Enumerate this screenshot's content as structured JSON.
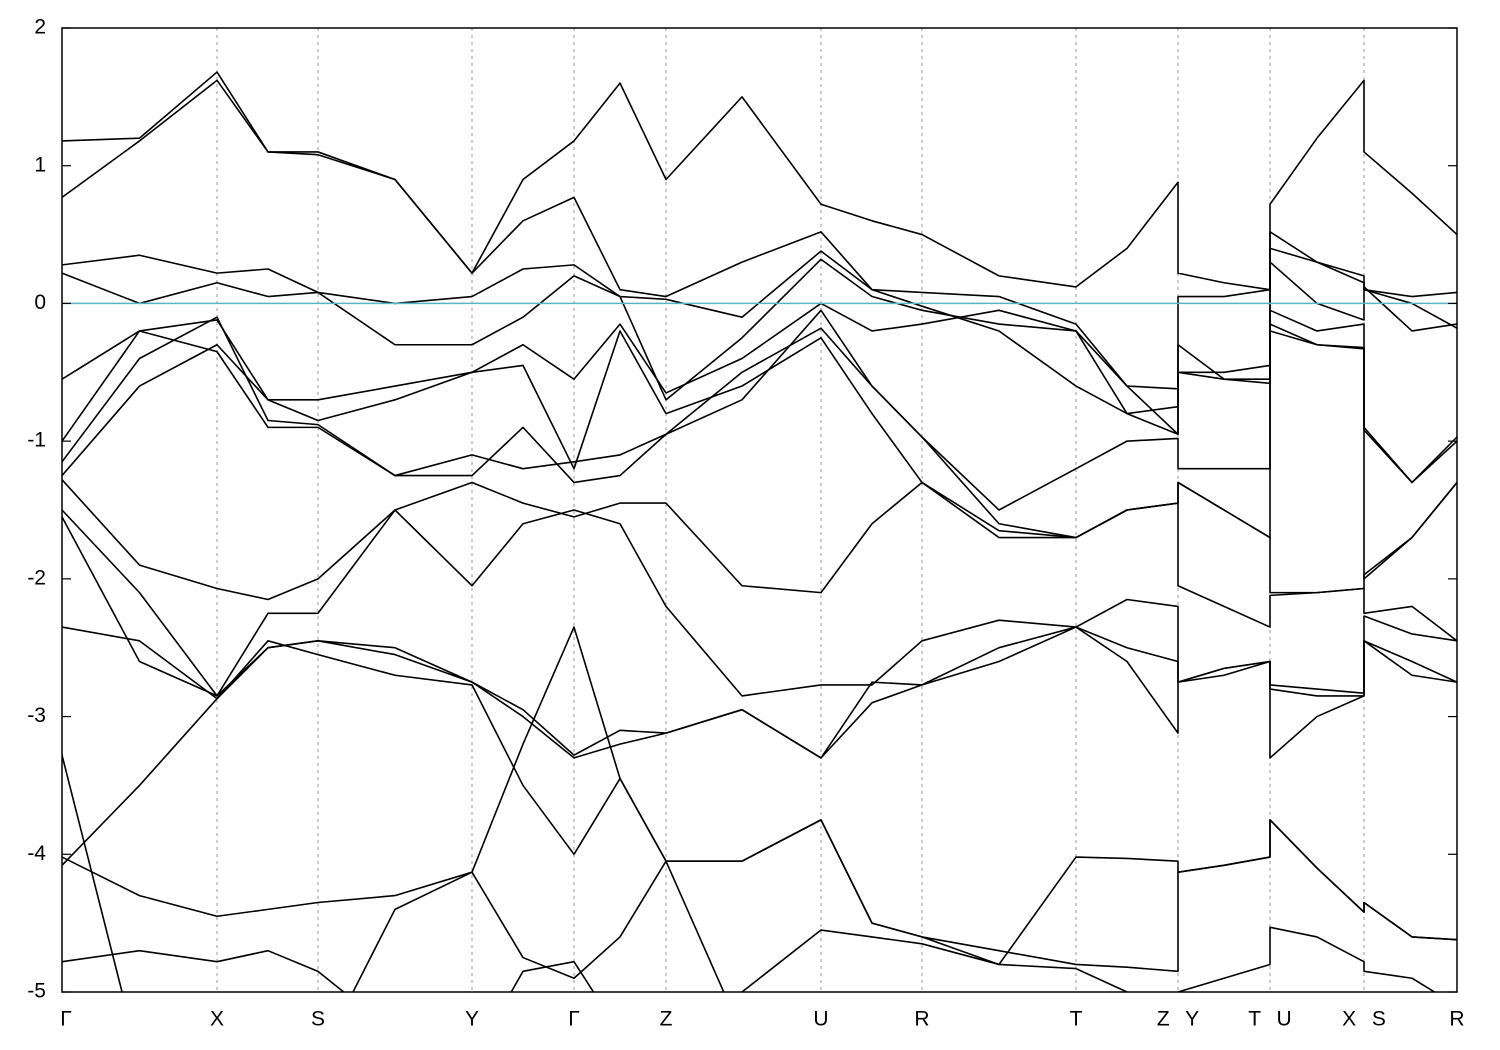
{
  "chart_data": {
    "type": "line",
    "xlim": [
      0,
      13.95
    ],
    "ylim": [
      -5,
      2
    ],
    "yticks": [
      -5,
      -4,
      -3,
      -2,
      -1,
      0,
      1,
      2
    ],
    "xticks": [
      {
        "value": 0,
        "label": "Γ"
      },
      {
        "value": 1.55,
        "label": "X"
      },
      {
        "value": 2.56,
        "label": "S"
      },
      {
        "value": 4.1,
        "label": "Y"
      },
      {
        "value": 5.12,
        "label": "Γ"
      },
      {
        "value": 6.04,
        "label": "Z"
      },
      {
        "value": 7.59,
        "label": "U"
      },
      {
        "value": 8.6,
        "label": "R"
      },
      {
        "value": 10.14,
        "label": "T"
      },
      {
        "value": 11.16,
        "label": "Z Y"
      },
      {
        "value": 12.08,
        "label": "T U"
      },
      {
        "value": 13.02,
        "label": "X S"
      },
      {
        "value": 13.95,
        "label": "R"
      }
    ],
    "grid": true,
    "fermi_level": 0,
    "fermi_color": "#5ab4c8",
    "x": [
      0,
      0.775,
      1.55,
      2.06,
      2.56,
      3.33,
      4.1,
      4.61,
      5.12,
      5.58,
      6.04,
      6.8,
      7.59,
      8.1,
      8.6,
      9.37,
      10.14,
      10.65,
      11.16,
      11.16,
      11.62,
      12.08,
      12.08,
      12.55,
      13.02,
      13.02,
      13.5,
      13.95
    ],
    "series": [
      {
        "color": "#000000",
        "values": [
          1.18,
          1.2,
          1.68,
          1.1,
          1.1,
          0.9,
          0.22,
          0.9,
          1.18,
          1.6,
          0.9,
          1.5,
          0.72,
          0.6,
          0.5,
          0.2,
          0.12,
          0.4,
          0.88,
          0.22,
          0.15,
          0.1,
          0.72,
          1.2,
          1.62,
          1.1,
          0.8,
          0.5
        ]
      },
      {
        "color": "#000000",
        "values": [
          0.77,
          1.18,
          1.62,
          1.1,
          1.08,
          0.9,
          0.22,
          0.6,
          0.77,
          0.1,
          0.05,
          0.3,
          0.52,
          0.1,
          0.08,
          0.05,
          -0.15,
          -0.6,
          -0.62,
          0.05,
          0.05,
          0.1,
          0.52,
          0.3,
          0.2,
          0.1,
          0.05,
          0.08
        ]
      },
      {
        "color": "#000000",
        "values": [
          0.28,
          0.35,
          0.22,
          0.25,
          0.08,
          0.0,
          0.05,
          0.25,
          0.28,
          0.05,
          0.03,
          -0.1,
          0.38,
          0.1,
          -0.02,
          -0.2,
          -0.6,
          -0.8,
          -0.75,
          -0.5,
          -0.5,
          -0.45,
          0.4,
          0.3,
          0.15,
          0.1,
          0.0,
          -0.18
        ]
      },
      {
        "color": "#000000",
        "values": [
          0.22,
          0.0,
          0.15,
          0.05,
          0.08,
          -0.3,
          -0.3,
          -0.1,
          0.2,
          0.05,
          -0.7,
          -0.25,
          0.32,
          0.05,
          -0.05,
          -0.15,
          -0.2,
          -0.8,
          -0.95,
          -0.3,
          -0.55,
          -0.55,
          0.3,
          0.0,
          -0.12,
          0.12,
          -0.2,
          -0.15
        ]
      },
      {
        "color": "#000000",
        "values": [
          -0.55,
          -0.2,
          -0.12,
          -0.7,
          -0.85,
          -0.7,
          -0.5,
          -0.3,
          -0.55,
          -0.15,
          -0.65,
          -0.4,
          0.0,
          -0.2,
          -0.15,
          -0.05,
          -0.2,
          -0.6,
          -0.95,
          -0.5,
          -0.55,
          -0.58,
          -0.05,
          -0.2,
          -0.15,
          -0.9,
          -1.3,
          -1.0
        ]
      },
      {
        "color": "#000000",
        "values": [
          -1.0,
          -0.2,
          -0.35,
          -0.9,
          -0.9,
          -1.25,
          -1.1,
          -1.2,
          -1.15,
          -1.1,
          -0.95,
          -0.7,
          -0.05,
          -0.6,
          -0.97,
          -1.5,
          -1.2,
          -1.0,
          -0.98,
          -1.2,
          -1.2,
          -1.2,
          -0.15,
          -0.3,
          -0.32,
          -0.92,
          -1.3,
          -0.97
        ]
      },
      {
        "color": "#000000",
        "values": [
          -1.15,
          -0.4,
          -0.1,
          -0.85,
          -0.88,
          -1.25,
          -1.25,
          -0.9,
          -1.3,
          -1.25,
          -0.95,
          -0.5,
          -0.18,
          -0.6,
          -0.97,
          -1.6,
          -1.7,
          -1.5,
          -1.45,
          -1.3,
          -1.5,
          -1.7,
          -0.2,
          -0.3,
          -0.33,
          -2.0,
          -1.7,
          -1.3
        ]
      },
      {
        "color": "#000000",
        "values": [
          -1.25,
          -0.6,
          -0.3,
          -0.7,
          -0.7,
          -0.6,
          -0.5,
          -0.45,
          -1.2,
          -0.2,
          -0.8,
          -0.6,
          -0.25,
          -0.8,
          -1.3,
          -1.7,
          -1.7,
          -1.5,
          -1.45,
          -1.3,
          -1.5,
          -1.7,
          -2.1,
          -2.1,
          -2.07,
          -1.97,
          -1.7,
          -1.3
        ]
      },
      {
        "color": "#000000",
        "values": [
          -1.28,
          -1.9,
          -2.07,
          -2.15,
          -2.0,
          -1.5,
          -1.3,
          -1.45,
          -1.55,
          -1.45,
          -1.45,
          -2.05,
          -2.1,
          -1.6,
          -1.3,
          -1.65,
          -1.7,
          -1.5,
          -1.45,
          -2.05,
          -2.2,
          -2.35,
          -2.12,
          -2.1,
          -2.07,
          -2.25,
          -2.2,
          -2.45
        ]
      },
      {
        "color": "#000000",
        "values": [
          -1.5,
          -2.1,
          -2.85,
          -2.25,
          -2.25,
          -1.5,
          -2.05,
          -1.6,
          -1.5,
          -1.6,
          -2.2,
          -2.85,
          -2.77,
          -2.77,
          -2.45,
          -2.3,
          -2.35,
          -2.15,
          -2.2,
          -2.75,
          -2.65,
          -2.6,
          -2.77,
          -2.8,
          -2.83,
          -2.27,
          -2.4,
          -2.45
        ]
      },
      {
        "color": "#000000",
        "values": [
          -1.55,
          -2.6,
          -2.85,
          -2.5,
          -2.45,
          -2.5,
          -2.75,
          -2.95,
          -3.28,
          -3.1,
          -3.12,
          -2.95,
          -3.3,
          -2.75,
          -2.77,
          -2.5,
          -2.35,
          -2.6,
          -3.12,
          -2.75,
          -2.65,
          -2.6,
          -3.3,
          -3.0,
          -2.85,
          -2.45,
          -2.7,
          -2.75
        ]
      },
      {
        "color": "#000000",
        "values": [
          -2.35,
          -2.45,
          -2.87,
          -2.45,
          -2.55,
          -2.7,
          -2.77,
          -3.5,
          -4.0,
          -3.45,
          -4.05,
          -4.05,
          -3.75,
          -4.5,
          -4.6,
          -4.8,
          -4.02,
          -4.03,
          -4.05,
          -4.13,
          -4.08,
          -4.02,
          -3.75,
          -4.1,
          -4.42,
          -4.35,
          -4.6,
          -4.62
        ]
      },
      {
        "color": "#000000",
        "values": [
          -4.08,
          -3.5,
          -2.87,
          -2.5,
          -2.45,
          -2.55,
          -2.75,
          -3.0,
          -3.3,
          -3.2,
          -3.12,
          -2.95,
          -3.3,
          -2.9,
          -2.77,
          -2.6,
          -2.35,
          -2.5,
          -2.6,
          -2.75,
          -2.7,
          -2.6,
          -2.8,
          -2.85,
          -2.85,
          -2.45,
          -2.6,
          -2.75
        ]
      },
      {
        "color": "#000000",
        "values": [
          -4.02,
          -4.3,
          -4.45,
          -4.4,
          -4.35,
          -4.3,
          -4.13,
          -4.75,
          -4.9,
          -4.6,
          -4.05,
          -4.05,
          -3.75,
          -4.5,
          -4.6,
          -4.7,
          -4.8,
          -4.82,
          -4.85,
          -4.13,
          -4.08,
          -4.02,
          -3.75,
          -4.1,
          -4.42,
          -4.35,
          -4.6,
          -4.62
        ]
      },
      {
        "color": "#000000",
        "values": [
          -4.78,
          -4.7,
          -4.78,
          -4.7,
          -4.85,
          -5.3,
          -5.5,
          -4.85,
          -4.78,
          -5.3,
          -5.5,
          -5.0,
          -4.55,
          -4.6,
          -4.65,
          -4.8,
          -4.83,
          -5.0,
          -5.2,
          -5.0,
          -4.9,
          -4.8,
          -4.53,
          -4.6,
          -4.78,
          -4.85,
          -4.9,
          -5.1
        ]
      },
      {
        "color": "#000000",
        "values": [
          -3.28,
          -5.5,
          -5.5,
          -5.5,
          -5.5,
          -4.4,
          -4.13,
          -3.2,
          -2.35,
          -3.45,
          -4.05,
          -5.3,
          -5.5,
          -5.5,
          -5.5,
          -5.5,
          -5.5,
          -5.5,
          -5.5,
          -5.5,
          -5.5,
          -5.5,
          -5.5,
          -5.5,
          -5.5,
          -5.5,
          -5.5,
          -5.5
        ]
      }
    ]
  }
}
